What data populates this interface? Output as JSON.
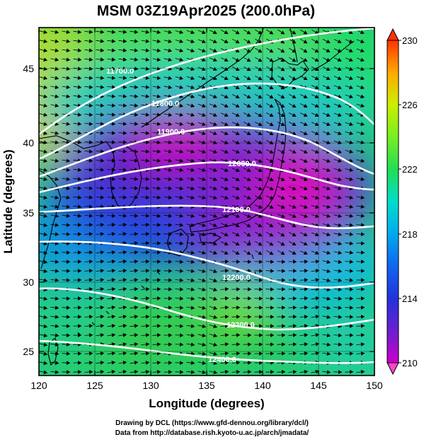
{
  "title": "MSM 03Z19Apr2025 (200.0hPa)",
  "xlabel": "Longitude (degrees)",
  "ylabel": "Latitude  (degrees)",
  "xticks": [
    "120",
    "125",
    "130",
    "135",
    "140",
    "145",
    "150"
  ],
  "yticks": [
    "25",
    "30",
    "35",
    "40",
    "45"
  ],
  "colorbar": {
    "ticks": [
      "230",
      "226",
      "222",
      "218",
      "214",
      "210"
    ],
    "min": 210,
    "max": 230,
    "unit": ""
  },
  "contour_labels": [
    "11700.0",
    "11800.0",
    "11900.0",
    "12000.0",
    "12100.0",
    "12200.0",
    "12300.0",
    "12400.0"
  ],
  "credits": {
    "line1": "Drawing by DCL (https://www.gfd-dennou.org/library/dcl/)",
    "line2": "Data from http://database.rish.kyoto-u.ac.jp/arch/jmadata/"
  },
  "colors": {
    "contour": "#ffffff",
    "wind_vectors": "#000000",
    "coastline": "#000000"
  }
}
